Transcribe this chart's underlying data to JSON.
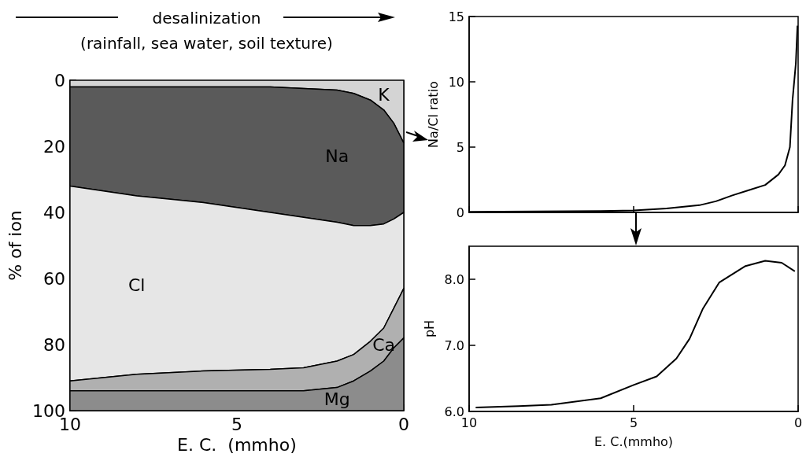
{
  "chart_data": [
    {
      "type": "area",
      "title": "desalinization",
      "subtitle": "(rainfall, sea water, soil texture)",
      "xlabel": "E. C.  (mmho)",
      "ylabel": "% of ion",
      "stacked": true,
      "x": [
        10,
        8,
        6,
        4,
        3,
        2,
        1.5,
        1,
        0.6,
        0.3,
        0
      ],
      "series": [
        {
          "name": "K",
          "color": "#d4d4d4",
          "values": [
            2,
            2,
            2,
            2,
            2.5,
            3,
            4,
            6,
            9,
            13,
            19
          ]
        },
        {
          "name": "Na",
          "color": "#5a5a5a",
          "values": [
            30,
            33,
            35,
            38,
            39,
            40,
            40,
            38,
            34.5,
            29,
            21
          ]
        },
        {
          "name": "Cl",
          "color": "#e6e6e6",
          "values": [
            59,
            54,
            51,
            47.5,
            45.5,
            42,
            39,
            35,
            31.5,
            27,
            23
          ]
        },
        {
          "name": "Ca",
          "color": "#b0b0b0",
          "values": [
            3,
            5,
            6,
            6.5,
            7,
            8,
            8,
            9,
            10,
            12,
            15
          ]
        },
        {
          "name": "Mg",
          "color": "#8c8c8c",
          "values": [
            6,
            6,
            6,
            6,
            6,
            7,
            9,
            12,
            15,
            19,
            22
          ]
        }
      ],
      "xlim": [
        10,
        0
      ],
      "xticks": [
        10,
        5,
        0
      ],
      "ylim": [
        100,
        0
      ],
      "yticks": [
        0,
        20,
        40,
        60,
        80,
        100
      ],
      "grid": false,
      "legend": false
    },
    {
      "type": "line",
      "ylabel": "Na/Cl ratio",
      "x": [
        10,
        8,
        6,
        5,
        4,
        3,
        2.5,
        2,
        1.5,
        1,
        0.6,
        0.4,
        0.25,
        0.17,
        0.07,
        0.02
      ],
      "series": [
        {
          "color": "#000000",
          "values": [
            0.05,
            0.07,
            0.1,
            0.15,
            0.3,
            0.55,
            0.85,
            1.3,
            1.7,
            2.1,
            2.9,
            3.6,
            5,
            8.6,
            11.4,
            14.3
          ]
        }
      ],
      "xlim": [
        10,
        0
      ],
      "xticks": [
        10,
        5,
        0
      ],
      "ylim": [
        0,
        15
      ],
      "yticks": [
        0,
        5,
        10,
        15
      ],
      "tick_labels": "y",
      "grid": false,
      "legend": false
    },
    {
      "type": "line",
      "xlabel": "E. C.(mmho)",
      "ylabel": "pH",
      "x": [
        9.8,
        8.5,
        7.5,
        6,
        5,
        4.3,
        3.7,
        3.3,
        2.9,
        2.4,
        1.6,
        1,
        0.5,
        0.1
      ],
      "series": [
        {
          "color": "#000000",
          "values": [
            6.06,
            6.08,
            6.1,
            6.2,
            6.4,
            6.53,
            6.8,
            7.1,
            7.55,
            7.95,
            8.2,
            8.28,
            8.25,
            8.12
          ]
        }
      ],
      "xlim": [
        10,
        0
      ],
      "xticks": [
        10,
        5,
        0
      ],
      "ylim": [
        6,
        8.5
      ],
      "yticks": [
        {
          "value": 6,
          "label": "6.0"
        },
        {
          "value": 7,
          "label": "7.0"
        },
        {
          "value": 8,
          "label": "8.0"
        }
      ],
      "grid": false,
      "legend": false
    }
  ]
}
